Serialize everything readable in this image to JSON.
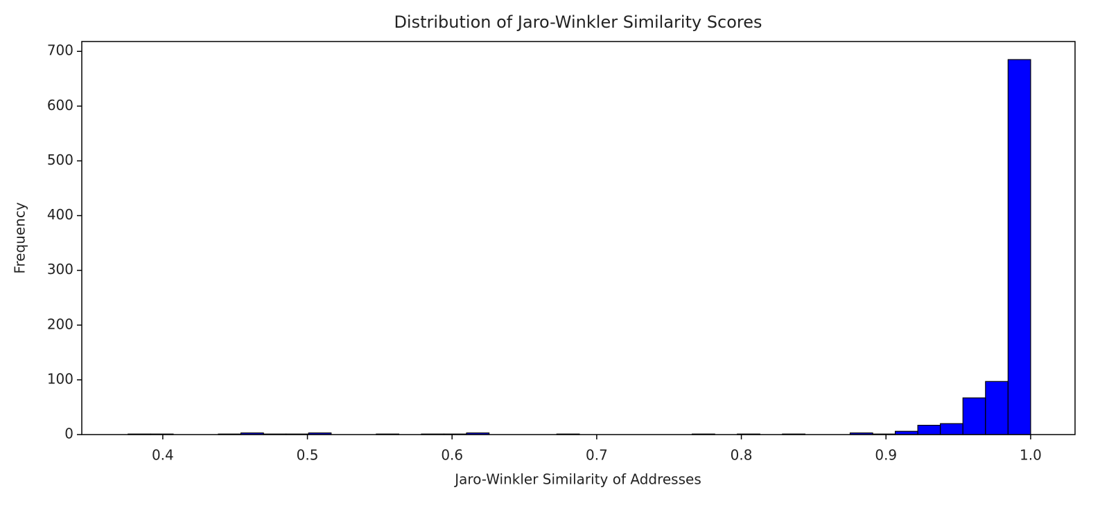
{
  "chart_data": {
    "type": "histogram",
    "title": "Distribution of Jaro-Winkler Similarity Scores",
    "x_label": "Jaro-Winkler Similarity of Addresses",
    "y_label": "Frequency",
    "bins": [
      0.376,
      0.3916,
      0.4072,
      0.4228,
      0.4384,
      0.454,
      0.4696,
      0.4852,
      0.5008,
      0.5164,
      0.532,
      0.5476,
      0.5632,
      0.5788,
      0.5944,
      0.61,
      0.6256,
      0.6412,
      0.6568,
      0.6724,
      0.688,
      0.7036,
      0.7192,
      0.7348,
      0.7504,
      0.766,
      0.7816,
      0.7972,
      0.8128,
      0.8284,
      0.844,
      0.8596,
      0.8752,
      0.8908,
      0.9064,
      0.922,
      0.9376,
      0.9532,
      0.9688,
      0.9844,
      1.0
    ],
    "counts": [
      1,
      1,
      0,
      0,
      1,
      3,
      1,
      1,
      3,
      0,
      0,
      1,
      0,
      1,
      1,
      3,
      0,
      0,
      0,
      1,
      0,
      0,
      0,
      0,
      0,
      1,
      0,
      1,
      0,
      1,
      0,
      0,
      3,
      1,
      6,
      17,
      20,
      67,
      97,
      685
    ],
    "color": "#0000ff",
    "edgecolor": "#000000",
    "xlim": [
      0.344,
      1.0307
    ],
    "xticks": [
      0.4,
      0.5,
      0.6,
      0.7,
      0.8,
      0.9,
      {
        "value": 1,
        "label": "1.0"
      }
    ],
    "ylim": [
      0,
      718
    ],
    "yticks": [
      0,
      100,
      200,
      300,
      400,
      500,
      600,
      700
    ],
    "grid": false
  }
}
